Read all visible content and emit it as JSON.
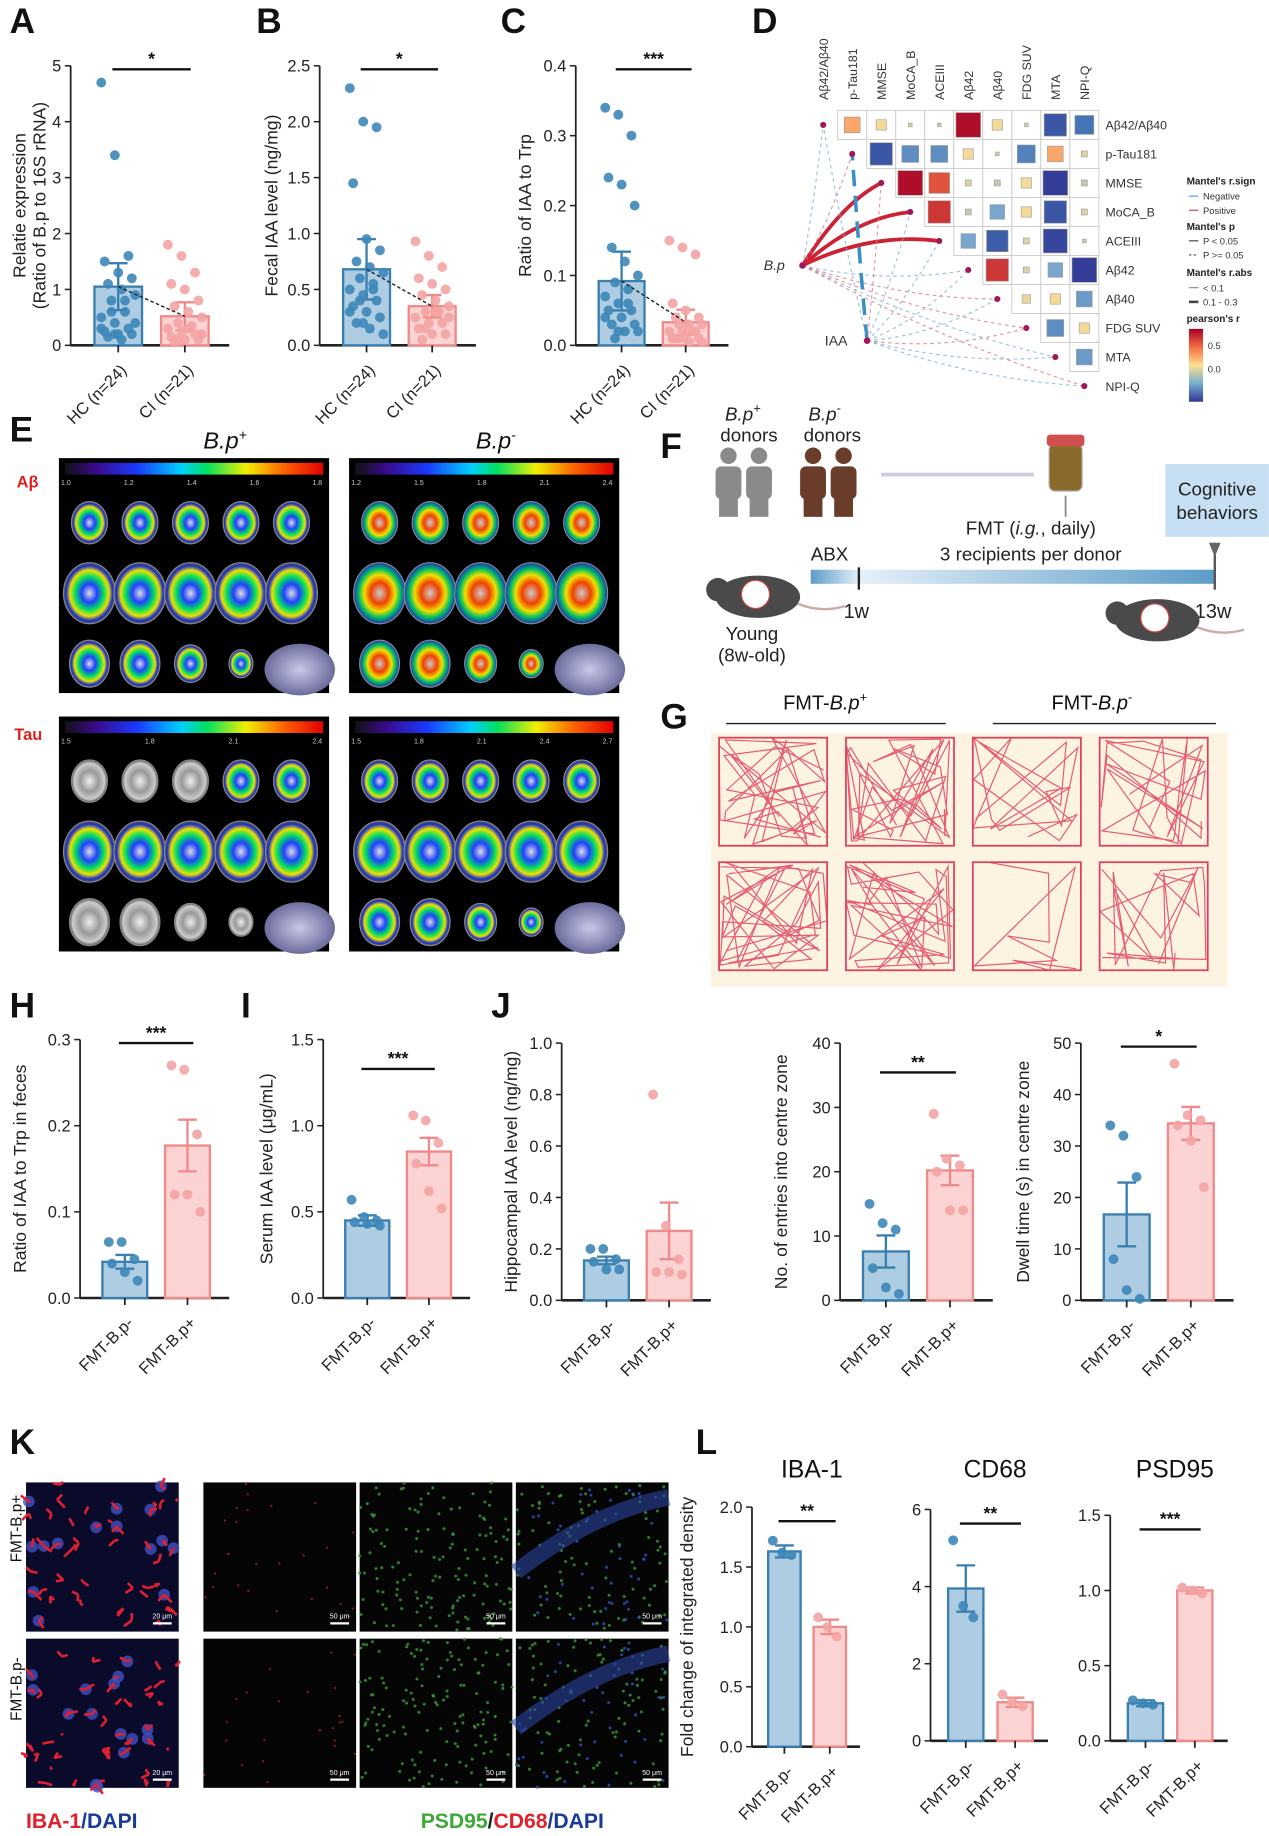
{
  "panels": {
    "A": "A",
    "B": "B",
    "C": "C",
    "D": "D",
    "E": "E",
    "F": "F",
    "G": "G",
    "H": "H",
    "I": "I",
    "J": "J",
    "K": "K",
    "L": "L"
  },
  "colors": {
    "blue_fill": "#aecde3",
    "blue_stroke": "#3a7fb0",
    "blue_point": "#3d87b8",
    "pink_fill": "#fbd3d3",
    "pink_stroke": "#ef8a8a",
    "pink_point": "#f4a3a3"
  },
  "chart_data": [
    {
      "id": "A",
      "type": "bar",
      "title": "",
      "ylabel": [
        "Relatie expression",
        "(Ratio of B.p to 16S rRNA)"
      ],
      "categories": [
        "HC (n=24)",
        "CI (n=21)"
      ],
      "values": [
        1.05,
        0.52
      ],
      "errors": [
        0.42,
        0.25
      ],
      "ylim": [
        0,
        5
      ],
      "ticks": [
        "0",
        "1",
        "2",
        "3",
        "4",
        "5"
      ],
      "significance": "*",
      "mean_link": true,
      "points": [
        [
          4.7,
          3.4,
          1.6,
          1.5,
          1.3,
          1.2,
          1.1,
          1.0,
          0.9,
          0.8,
          0.6,
          0.5,
          0.4,
          0.3,
          0.25,
          0.2,
          0.2,
          0.15,
          0.1,
          0.4,
          0.6,
          0.8,
          0.3,
          0.2
        ],
        [
          1.8,
          1.6,
          1.3,
          1.1,
          1.0,
          0.8,
          0.7,
          0.6,
          0.5,
          0.4,
          0.35,
          0.3,
          0.25,
          0.2,
          0.15,
          0.1,
          0.1,
          0.05,
          0.3,
          0.2,
          0.1
        ]
      ]
    },
    {
      "id": "B",
      "type": "bar",
      "title": "",
      "ylabel": [
        "Fecal IAA level (ng/mg)"
      ],
      "categories": [
        "HC (n=24)",
        "CI (n=21)"
      ],
      "values": [
        0.68,
        0.35
      ],
      "errors": [
        0.27,
        0.1
      ],
      "ylim": [
        0,
        2.5
      ],
      "ticks": [
        "0.0",
        "0.5",
        "1.0",
        "1.5",
        "2.0",
        "2.5"
      ],
      "significance": "*",
      "mean_link": true,
      "points": [
        [
          2.3,
          2.0,
          1.95,
          1.45,
          0.95,
          0.85,
          0.75,
          0.7,
          0.65,
          0.6,
          0.55,
          0.5,
          0.45,
          0.4,
          0.35,
          0.3,
          0.25,
          0.2,
          0.15,
          0.1,
          0.4,
          0.5,
          0.3,
          0.2
        ],
        [
          0.93,
          0.8,
          0.7,
          0.6,
          0.55,
          0.5,
          0.45,
          0.4,
          0.35,
          0.3,
          0.3,
          0.25,
          0.2,
          0.2,
          0.15,
          0.1,
          0.1,
          0.05,
          0.3,
          0.25,
          0.15
        ]
      ]
    },
    {
      "id": "C",
      "type": "bar",
      "title": "",
      "ylabel": [
        "Ratio of IAA to Trp"
      ],
      "categories": [
        "HC (n=24)",
        "CI (n=21)"
      ],
      "values": [
        0.092,
        0.033
      ],
      "errors": [
        0.042,
        0.018
      ],
      "ylim": [
        0,
        0.4
      ],
      "ticks": [
        "0.0",
        "0.1",
        "0.2",
        "0.3",
        "0.4"
      ],
      "significance": "***",
      "mean_link": true,
      "points": [
        [
          0.34,
          0.33,
          0.3,
          0.24,
          0.23,
          0.2,
          0.14,
          0.12,
          0.1,
          0.09,
          0.08,
          0.07,
          0.06,
          0.05,
          0.05,
          0.04,
          0.03,
          0.03,
          0.02,
          0.02,
          0.01,
          0.06,
          0.04,
          0.02
        ],
        [
          0.15,
          0.14,
          0.13,
          0.06,
          0.05,
          0.04,
          0.04,
          0.03,
          0.03,
          0.03,
          0.02,
          0.02,
          0.02,
          0.02,
          0.01,
          0.01,
          0.01,
          0.01,
          0.005,
          0.005,
          0.01
        ]
      ]
    },
    {
      "id": "H",
      "type": "bar",
      "title": "",
      "ylabel": [
        "Ratio of IAA to Trp in feces"
      ],
      "categories": [
        "FMT-B.p-",
        "FMT-B.p+"
      ],
      "values": [
        0.042,
        0.177
      ],
      "errors": [
        0.008,
        0.03
      ],
      "ylim": [
        0,
        0.3
      ],
      "ticks": [
        "0.0",
        "0.1",
        "0.2",
        "0.3"
      ],
      "significance": "***",
      "points": [
        [
          0.065,
          0.065,
          0.045,
          0.04,
          0.03,
          0.02
        ],
        [
          0.27,
          0.265,
          0.19,
          0.12,
          0.12,
          0.1
        ]
      ]
    },
    {
      "id": "I",
      "type": "bar",
      "title": "",
      "ylabel": [
        "Serum IAA level (μg/mL)"
      ],
      "categories": [
        "FMT-B.p-",
        "FMT-B.p+"
      ],
      "values": [
        0.45,
        0.85
      ],
      "errors": [
        0.03,
        0.08
      ],
      "ylim": [
        0,
        1.5
      ],
      "ticks": [
        "0.0",
        "0.5",
        "1.0",
        "1.5"
      ],
      "significance": "***",
      "points": [
        [
          0.57,
          0.47,
          0.45,
          0.44,
          0.43,
          0.42
        ],
        [
          1.06,
          1.03,
          0.9,
          0.78,
          0.62,
          0.52
        ]
      ]
    },
    {
      "id": "J1",
      "type": "bar",
      "title": "",
      "ylabel": [
        "Hippocampal IAA level (ng/mg)"
      ],
      "categories": [
        "FMT-B.p-",
        "FMT-B.p+"
      ],
      "values": [
        0.155,
        0.27
      ],
      "errors": [
        0.015,
        0.11
      ],
      "ylim": [
        0,
        1.0
      ],
      "ticks": [
        "0.0",
        "0.2",
        "0.4",
        "0.6",
        "0.8",
        "1.0"
      ],
      "significance": "",
      "points": [
        [
          0.2,
          0.2,
          0.16,
          0.15,
          0.12,
          0.12
        ],
        [
          0.8,
          0.29,
          0.16,
          0.11,
          0.11,
          0.1
        ]
      ]
    },
    {
      "id": "J2",
      "type": "bar",
      "title": "",
      "ylabel": [
        "No. of entries into centre zone"
      ],
      "categories": [
        "FMT-B.p-",
        "FMT-B.p+"
      ],
      "values": [
        7.6,
        20.2
      ],
      "errors": [
        2.5,
        2.3
      ],
      "ylim": [
        0,
        40
      ],
      "ticks": [
        "0",
        "10",
        "20",
        "30",
        "40"
      ],
      "significance": "**",
      "points": [
        [
          15,
          12,
          11,
          5,
          2,
          1
        ],
        [
          29,
          22,
          21,
          20,
          14,
          14
        ]
      ]
    },
    {
      "id": "J3",
      "type": "bar",
      "title": "",
      "ylabel": [
        "Dwell time (s) in centre zone"
      ],
      "categories": [
        "FMT-B.p-",
        "FMT-B.p+"
      ],
      "values": [
        16.7,
        34.4
      ],
      "errors": [
        6.2,
        3.2
      ],
      "ylim": [
        0,
        50
      ],
      "ticks": [
        "0",
        "10",
        "20",
        "30",
        "40",
        "50"
      ],
      "significance": "*",
      "points": [
        [
          34,
          32,
          24,
          8,
          2,
          0.3
        ],
        [
          46,
          36,
          35,
          34,
          31,
          22
        ]
      ]
    },
    {
      "id": "L1",
      "type": "bar",
      "title": "IBA-1",
      "ylabel": [
        "Fold change of integrated density"
      ],
      "categories": [
        "FMT-B.p-",
        "FMT-B.p+"
      ],
      "values": [
        1.63,
        1.0
      ],
      "errors": [
        0.05,
        0.06
      ],
      "ylim": [
        0,
        2.0
      ],
      "ticks": [
        "0.0",
        "0.5",
        "1.0",
        "1.5",
        "2.0"
      ],
      "significance": "**",
      "points": [
        [
          1.72,
          1.62,
          1.6
        ],
        [
          1.08,
          1.0,
          0.92
        ]
      ]
    },
    {
      "id": "L2",
      "type": "bar",
      "title": "CD68",
      "ylabel": [],
      "categories": [
        "FMT-B.p-",
        "FMT-B.p+"
      ],
      "values": [
        3.95,
        1.0
      ],
      "errors": [
        0.6,
        0.12
      ],
      "ylim": [
        0,
        6
      ],
      "ticks": [
        "0",
        "2",
        "4",
        "6"
      ],
      "significance": "**",
      "points": [
        [
          5.2,
          3.5,
          3.2
        ],
        [
          1.2,
          1.0,
          0.9
        ]
      ]
    },
    {
      "id": "L3",
      "type": "bar",
      "title": "PSD95",
      "ylabel": [],
      "categories": [
        "FMT-B.p-",
        "FMT-B.p+"
      ],
      "values": [
        0.25,
        1.0
      ],
      "errors": [
        0.02,
        0.02
      ],
      "ylim": [
        0,
        1.5
      ],
      "ticks": [
        "0.0",
        "0.5",
        "1.0",
        "1.5"
      ],
      "significance": "***",
      "points": [
        [
          0.27,
          0.25,
          0.24
        ],
        [
          1.02,
          1.0,
          0.98
        ]
      ]
    },
    {
      "id": "D",
      "type": "heatmap",
      "variables": [
        "Aβ42/Aβ40",
        "p-Tau181",
        "MMSE",
        "MoCA_B",
        "ACEIII",
        "Aβ42",
        "Aβ40",
        "FDG SUV",
        "MTA",
        "NPI-Q"
      ],
      "upper_r": [
        [
          0.35,
          0.15,
          0.02,
          0.02,
          0.85,
          0.15,
          0.02,
          -0.7,
          -0.5
        ],
        [
          -0.7,
          -0.4,
          -0.4,
          0.15,
          0.02,
          -0.45,
          0.35,
          0.05
        ],
        [
          0.85,
          0.6,
          0.05,
          -0.05,
          0.15,
          -0.85,
          -0.05
        ],
        [
          0.7,
          -0.05,
          -0.3,
          0.15,
          -0.7,
          0.05
        ],
        [
          -0.3,
          -0.65,
          0.05,
          -0.8,
          -0.02
        ],
        [
          0.7,
          0.05,
          -0.3,
          -0.85
        ],
        [
          0.1,
          0.15,
          -0.35
        ],
        [
          -0.4,
          0.15
        ],
        [
          -0.35
        ]
      ],
      "nodes": [
        "B.p",
        "IAA"
      ],
      "links": [
        {
          "from": "B.p",
          "to": 2,
          "sign": "Positive",
          "p": "P < 0.05",
          "abs": "0.1 - 0.3"
        },
        {
          "from": "B.p",
          "to": 3,
          "sign": "Positive",
          "p": "P < 0.05",
          "abs": "0.1 - 0.3"
        },
        {
          "from": "B.p",
          "to": 4,
          "sign": "Positive",
          "p": "P < 0.05",
          "abs": "0.1 - 0.3"
        },
        {
          "from": "B.p",
          "to": 0,
          "sign": "Negative",
          "p": "P >= 0.05",
          "abs": "< 0.1"
        },
        {
          "from": "B.p",
          "to": 1,
          "sign": "Positive",
          "p": "P >= 0.05",
          "abs": "< 0.1"
        },
        {
          "from": "B.p",
          "to": 5,
          "sign": "Negative",
          "p": "P >= 0.05",
          "abs": "< 0.1"
        },
        {
          "from": "B.p",
          "to": 6,
          "sign": "Positive",
          "p": "P >= 0.05",
          "abs": "< 0.1"
        },
        {
          "from": "B.p",
          "to": 7,
          "sign": "Positive",
          "p": "P >= 0.05",
          "abs": "< 0.1"
        },
        {
          "from": "B.p",
          "to": 8,
          "sign": "Negative",
          "p": "P >= 0.05",
          "abs": "< 0.1"
        },
        {
          "from": "B.p",
          "to": 9,
          "sign": "Positive",
          "p": "P >= 0.05",
          "abs": "< 0.1"
        },
        {
          "from": "IAA",
          "to": 1,
          "sign": "Negative",
          "p": "P >= 0.05",
          "abs": "0.1 - 0.3"
        },
        {
          "from": "IAA",
          "to": 0,
          "sign": "Negative",
          "p": "P >= 0.05",
          "abs": "< 0.1"
        },
        {
          "from": "IAA",
          "to": 2,
          "sign": "Positive",
          "p": "P >= 0.05",
          "abs": "< 0.1"
        },
        {
          "from": "IAA",
          "to": 3,
          "sign": "Negative",
          "p": "P >= 0.05",
          "abs": "< 0.1"
        },
        {
          "from": "IAA",
          "to": 4,
          "sign": "Negative",
          "p": "P >= 0.05",
          "abs": "< 0.1"
        },
        {
          "from": "IAA",
          "to": 5,
          "sign": "Negative",
          "p": "P >= 0.05",
          "abs": "< 0.1"
        },
        {
          "from": "IAA",
          "to": 6,
          "sign": "Negative",
          "p": "P >= 0.05",
          "abs": "< 0.1"
        },
        {
          "from": "IAA",
          "to": 7,
          "sign": "Positive",
          "p": "P >= 0.05",
          "abs": "< 0.1"
        },
        {
          "from": "IAA",
          "to": 8,
          "sign": "Negative",
          "p": "P >= 0.05",
          "abs": "< 0.1"
        },
        {
          "from": "IAA",
          "to": 9,
          "sign": "Negative",
          "p": "P >= 0.05",
          "abs": "< 0.1"
        }
      ],
      "legend": {
        "sign_title": "Mantel's r.sign",
        "sign_items": [
          "Negative",
          "Positive"
        ],
        "p_title": "Mantel's p",
        "p_items": [
          "P < 0.05",
          "P >= 0.05"
        ],
        "abs_title": "Mantel's r.abs",
        "abs_items": [
          "< 0.1",
          "0.1 - 0.3"
        ],
        "r_title": "pearson's r",
        "r_ticks": [
          "0.5",
          "0.0"
        ]
      }
    }
  ],
  "panel_e": {
    "col_titles": [
      "B.p",
      "+",
      "B.p",
      "-"
    ],
    "row_labels": [
      "Aβ",
      "Tau"
    ],
    "colorbars": [
      [
        "1.0",
        "1.2",
        "1.4",
        "1.6",
        "1.8"
      ],
      [
        "1.2",
        "1.5",
        "1.8",
        "2.1",
        "2.4"
      ],
      [
        "1.5",
        "1.8",
        "2.1",
        "2.4"
      ],
      [
        "1.5",
        "1.8",
        "2.1",
        "2.4",
        "2.7"
      ]
    ]
  },
  "panel_f": {
    "donor_pos": [
      "B.p",
      "+",
      "donors"
    ],
    "donor_neg": [
      "B.p",
      "-",
      "donors"
    ],
    "fmt": [
      "FMT (",
      "i.g.",
      ", daily)"
    ],
    "recipients": "3 recipients per donor",
    "abx": "ABX",
    "w1": "1w",
    "w13": "13w",
    "young": [
      "Young",
      "(8w-old)"
    ],
    "cognitive": [
      "Cognitive",
      "behaviors"
    ]
  },
  "panel_g": {
    "headers": [
      [
        "FMT-",
        "B.p",
        "+"
      ],
      [
        "FMT-",
        "B.p",
        "-"
      ]
    ]
  },
  "panel_k": {
    "row_labels": [
      "FMT-B.p+",
      "FMT-B.p-"
    ],
    "scale_small": "20 μm",
    "scale_large": "50 μm",
    "legend_left": [
      {
        "text": "IBA-1",
        "color": "#e0202a"
      },
      {
        "text": "/",
        "color": "#1a3a9a"
      },
      {
        "text": "DAPI",
        "color": "#1a3a9a"
      }
    ],
    "legend_right": [
      {
        "text": "PSD95",
        "color": "#3aaa35"
      },
      {
        "text": "/",
        "color": "#222"
      },
      {
        "text": "CD68",
        "color": "#e0202a"
      },
      {
        "text": "/",
        "color": "#1a3a9a"
      },
      {
        "text": "DAPI",
        "color": "#1a3a9a"
      }
    ]
  }
}
